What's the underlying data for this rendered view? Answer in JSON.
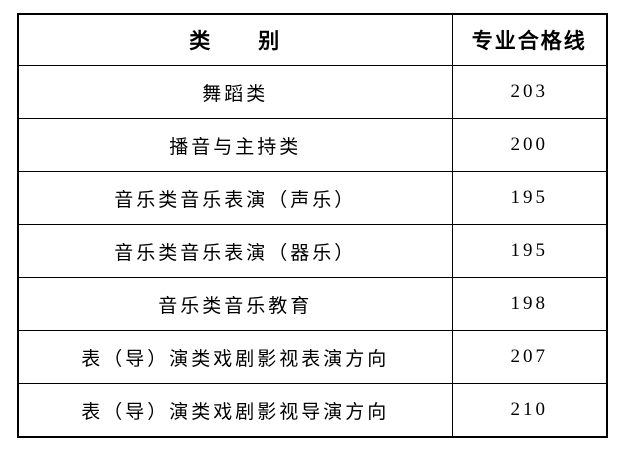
{
  "table": {
    "header": {
      "category": "类　　别",
      "score_line": "专业合格线"
    },
    "rows": [
      {
        "category": "舞蹈类",
        "score": "203"
      },
      {
        "category": "播音与主持类",
        "score": "200"
      },
      {
        "category": "音乐类音乐表演（声乐）",
        "score": "195"
      },
      {
        "category": "音乐类音乐表演（器乐）",
        "score": "195"
      },
      {
        "category": "音乐类音乐教育",
        "score": "198"
      },
      {
        "category": "表（导）演类戏剧影视表演方向",
        "score": "207"
      },
      {
        "category": "表（导）演类戏剧影视导演方向",
        "score": "210"
      }
    ],
    "colors": {
      "border": "#000000",
      "text": "#000000",
      "background": "#ffffff"
    }
  }
}
